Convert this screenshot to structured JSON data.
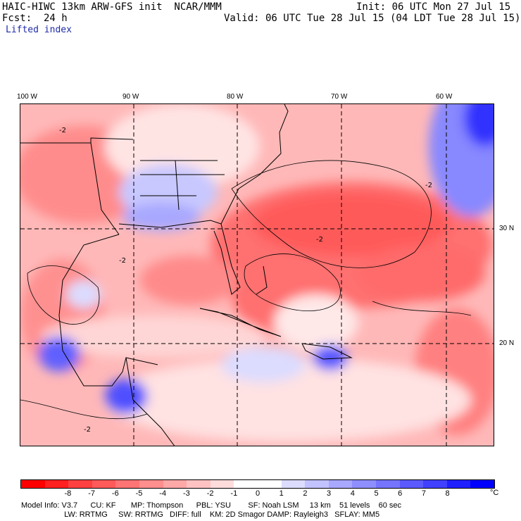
{
  "header": {
    "model_line": "HAIC-HIWC 13km ARW-GFS init  NCAR/MMM",
    "init_line": "Init: 06 UTC Mon 27 Jul 15",
    "fcst_line": "Fcst:  24 h",
    "valid_line": "Valid: 06 UTC Tue 28 Jul 15 (04 LDT Tue 28 Jul 15)",
    "field_name": "Lifted index"
  },
  "map": {
    "lon_labels": [
      "100 W",
      "90 W",
      "80 W",
      "70 W",
      "60 W"
    ],
    "lat_labels": [
      "30 N",
      "20 N"
    ],
    "contour_label": "-2"
  },
  "colorbar": {
    "colors": [
      "#ff0000",
      "#ff2020",
      "#ff4040",
      "#ff5a5a",
      "#ff7474",
      "#ff8e8e",
      "#ffa8a8",
      "#ffc2c2",
      "#ffdcdc",
      "#ffffff",
      "#ffffff",
      "#dcdcff",
      "#c2c2ff",
      "#a8a8ff",
      "#8e8eff",
      "#7474ff",
      "#5a5aff",
      "#4040ff",
      "#2020ff",
      "#0000ff"
    ],
    "ticks": [
      "-8",
      "-7",
      "-6",
      "-5",
      "-4",
      "-3",
      "-2",
      "-1",
      "0",
      "1",
      "2",
      "3",
      "4",
      "5",
      "6",
      "7",
      "8"
    ],
    "unit": "°C"
  },
  "footer": {
    "line1": "Model Info: V3.7      CU: KF       MP: Thompson      PBL: YSU        SF: Noah LSM     13 km    51 levels    60 sec",
    "line2": "                    LW: RRTMG     SW: RRTMG   DIFF: full    KM: 2D Smagor DAMP: Rayleigh3   SFLAY: MM5"
  }
}
